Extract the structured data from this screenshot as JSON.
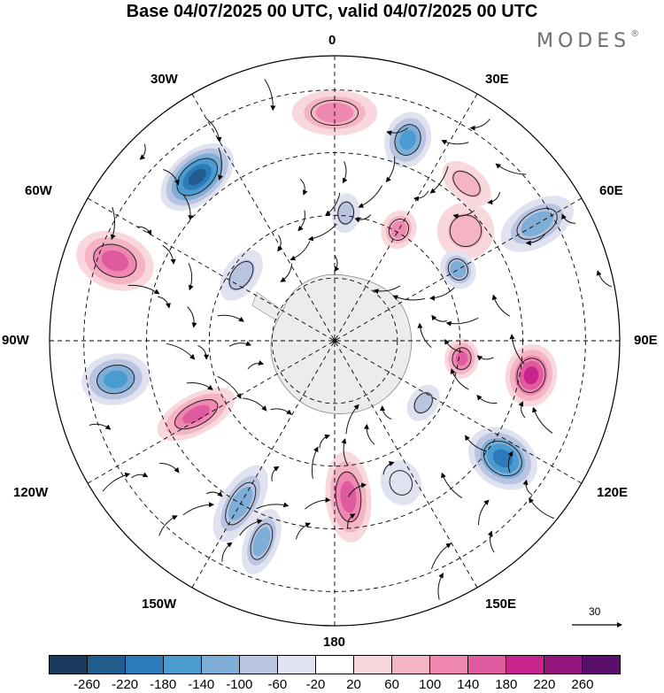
{
  "title": "Base 04/07/2025 00 UTC, valid 04/07/2025 00 UTC",
  "brand": {
    "name": "MODES",
    "mark": "®"
  },
  "longitude_labels": {
    "top": "0",
    "bottom": "180",
    "left": "90W",
    "right": "90E",
    "upper_left_30": "30W",
    "upper_right_30": "30E",
    "upper_left_60": "60W",
    "upper_right_60": "60E",
    "lower_left_120": "120W",
    "lower_right_120": "120E",
    "lower_left_150": "150W",
    "lower_right_150": "150E"
  },
  "vector_scale": {
    "value": "30"
  },
  "colorbar": {
    "colors": [
      "#1a3a5e",
      "#1f5d8e",
      "#2b7bbb",
      "#4a9bd0",
      "#7eaed8",
      "#b8c4e0",
      "#e0e2f0",
      "#ffffff",
      "#f8d8dc",
      "#f4b4c4",
      "#ee88b0",
      "#e05aa0",
      "#c8248e",
      "#93167c",
      "#5a0f6e"
    ],
    "tick_labels": [
      "-260",
      "-220",
      "-180",
      "-140",
      "-100",
      "-60",
      "-20",
      "20",
      "60",
      "100",
      "140",
      "180",
      "220",
      "260"
    ]
  },
  "anomalies": [
    {
      "lon": -40,
      "r": 0.75,
      "value": -240,
      "a": 0.15,
      "b": 0.09
    },
    {
      "lon": 20,
      "r": 0.75,
      "value": -160,
      "a": 0.08,
      "b": 0.1
    },
    {
      "lon": 0,
      "r": 0.8,
      "value": 120,
      "a": 0.15,
      "b": 0.08
    },
    {
      "lon": -70,
      "r": 0.82,
      "value": 180,
      "a": 0.1,
      "b": 0.14
    },
    {
      "lon": -100,
      "r": 0.78,
      "value": -180,
      "a": 0.09,
      "b": 0.12
    },
    {
      "lon": -118,
      "r": 0.55,
      "value": 160,
      "a": 0.07,
      "b": 0.15
    },
    {
      "lon": -150,
      "r": 0.66,
      "value": -140,
      "a": 0.07,
      "b": 0.15
    },
    {
      "lon": -160,
      "r": 0.75,
      "value": -120,
      "a": 0.06,
      "b": 0.12
    },
    {
      "lon": 175,
      "r": 0.55,
      "value": 180,
      "a": 0.08,
      "b": 0.16
    },
    {
      "lon": 155,
      "r": 0.55,
      "value": -60,
      "a": 0.07,
      "b": 0.08
    },
    {
      "lon": 125,
      "r": 0.72,
      "value": -220,
      "a": 0.1,
      "b": 0.13
    },
    {
      "lon": 100,
      "r": 0.7,
      "value": 220,
      "a": 0.11,
      "b": 0.09
    },
    {
      "lon": 98,
      "r": 0.45,
      "value": 160,
      "a": 0.07,
      "b": 0.06
    },
    {
      "lon": 125,
      "r": 0.38,
      "value": -100,
      "a": 0.07,
      "b": 0.05
    },
    {
      "lon": 60,
      "r": 0.82,
      "value": -140,
      "a": 0.08,
      "b": 0.14
    },
    {
      "lon": 50,
      "r": 0.6,
      "value": 80,
      "a": 0.1,
      "b": 0.1
    },
    {
      "lon": 60,
      "r": 0.5,
      "value": -120,
      "a": 0.07,
      "b": 0.06
    },
    {
      "lon": 30,
      "r": 0.45,
      "value": 120,
      "a": 0.06,
      "b": 0.07
    },
    {
      "lon": 5,
      "r": 0.45,
      "value": -100,
      "a": 0.05,
      "b": 0.07
    },
    {
      "lon": -55,
      "r": 0.4,
      "value": -80,
      "a": 0.1,
      "b": 0.06
    },
    {
      "lon": 40,
      "r": 0.72,
      "value": 80,
      "a": 0.1,
      "b": 0.06
    }
  ]
}
